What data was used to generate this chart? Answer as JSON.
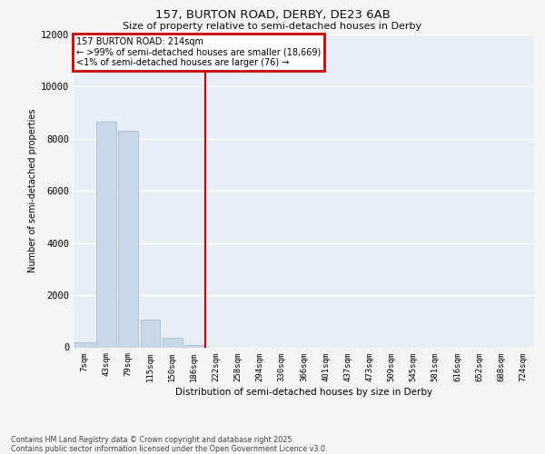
{
  "title_line1": "157, BURTON ROAD, DERBY, DE23 6AB",
  "title_line2": "Size of property relative to semi-detached houses in Derby",
  "xlabel": "Distribution of semi-detached houses by size in Derby",
  "ylabel": "Number of semi-detached properties",
  "bar_labels": [
    "7sqm",
    "43sqm",
    "79sqm",
    "115sqm",
    "150sqm",
    "186sqm",
    "222sqm",
    "258sqm",
    "294sqm",
    "330sqm",
    "366sqm",
    "401sqm",
    "437sqm",
    "473sqm",
    "509sqm",
    "545sqm",
    "581sqm",
    "616sqm",
    "652sqm",
    "688sqm",
    "724sqm"
  ],
  "bar_values": [
    200,
    8650,
    8300,
    1050,
    350,
    100,
    0,
    0,
    0,
    0,
    0,
    0,
    0,
    0,
    0,
    0,
    0,
    0,
    0,
    0,
    0
  ],
  "bar_color": "#c8d8e8",
  "bar_edge_color": "#a0b8cc",
  "red_line_bar_index": 6,
  "highlight_color": "#cc0000",
  "annotation_title": "157 BURTON ROAD: 214sqm",
  "annotation_line1": "← >99% of semi-detached houses are smaller (18,669)",
  "annotation_line2": "<1% of semi-detached houses are larger (76) →",
  "annotation_box_color": "#ffffff",
  "annotation_box_edge_color": "#cc0000",
  "ylim": [
    0,
    12000
  ],
  "yticks": [
    0,
    2000,
    4000,
    6000,
    8000,
    10000,
    12000
  ],
  "plot_bg_color": "#e8eef5",
  "grid_color": "#ffffff",
  "fig_bg_color": "#f5f5f5",
  "footer_line1": "Contains HM Land Registry data © Crown copyright and database right 2025.",
  "footer_line2": "Contains public sector information licensed under the Open Government Licence v3.0."
}
